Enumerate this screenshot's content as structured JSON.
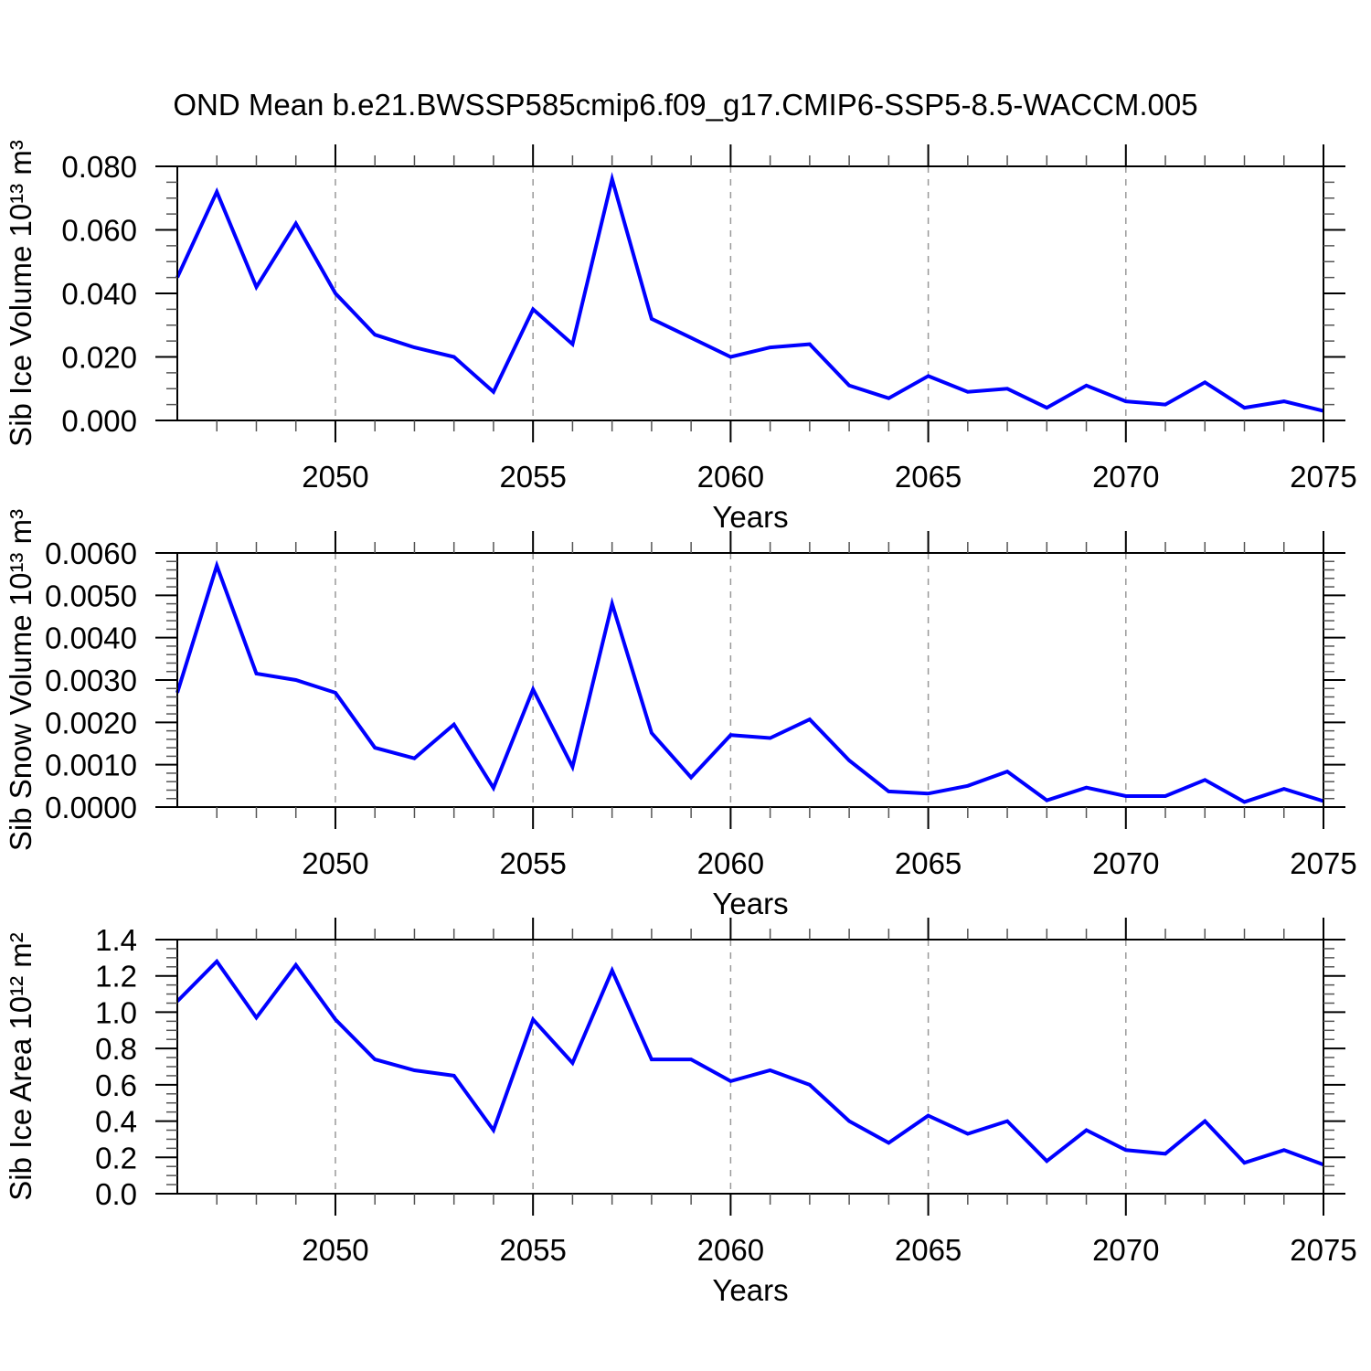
{
  "title": "OND Mean b.e21.BWSSP585cmip6.f09_g17.CMIP6-SSP5-8.5-WACCM.005",
  "colors": {
    "line": "#0000ff",
    "axis": "#000000",
    "minor_tick": "#555555",
    "grid": "#999999",
    "background": "#ffffff",
    "text": "#000000"
  },
  "x_axis": {
    "label": "Years",
    "xlim": [
      2046,
      2075
    ],
    "major_ticks": [
      2050,
      2055,
      2060,
      2065,
      2070,
      2075
    ],
    "tick_labels": [
      "2050",
      "2055",
      "2060",
      "2065",
      "2070",
      "2075"
    ],
    "gridlines": [
      2050,
      2055,
      2060,
      2065,
      2070
    ],
    "minor_step_years": 1
  },
  "chart_data": [
    {
      "type": "line",
      "name": "sib-ice-volume",
      "ylabel": "Sib Ice Volume 10¹³ m³",
      "xlabel": "Years",
      "ylim": [
        0,
        0.08
      ],
      "ytick_major_step": 0.02,
      "ytick_minor_step": 0.005,
      "ytick_decimals": 3,
      "ytick_labels": [
        "0.000",
        "0.020",
        "0.040",
        "0.060",
        "0.080"
      ],
      "grid": "dashed-vertical",
      "legend": "none",
      "x": [
        2046,
        2047,
        2048,
        2049,
        2050,
        2051,
        2052,
        2053,
        2054,
        2055,
        2056,
        2057,
        2058,
        2059,
        2060,
        2061,
        2062,
        2063,
        2064,
        2065,
        2066,
        2067,
        2068,
        2069,
        2070,
        2071,
        2072,
        2073,
        2074,
        2075
      ],
      "values": [
        0.045,
        0.072,
        0.042,
        0.062,
        0.04,
        0.027,
        0.023,
        0.02,
        0.009,
        0.035,
        0.024,
        0.076,
        0.032,
        0.026,
        0.02,
        0.023,
        0.024,
        0.011,
        0.007,
        0.014,
        0.009,
        0.01,
        0.004,
        0.011,
        0.006,
        0.005,
        0.012,
        0.004,
        0.006,
        0.003
      ]
    },
    {
      "type": "line",
      "name": "sib-snow-volume",
      "ylabel": "Sib Snow Volume 10¹³ m³",
      "xlabel": "Years",
      "ylim": [
        0,
        0.006
      ],
      "ytick_major_step": 0.001,
      "ytick_minor_step": 0.0002,
      "ytick_decimals": 4,
      "ytick_labels": [
        "0.0000",
        "0.0010",
        "0.0020",
        "0.0030",
        "0.0040",
        "0.0050",
        "0.0060"
      ],
      "grid": "dashed-vertical",
      "legend": "none",
      "x": [
        2046,
        2047,
        2048,
        2049,
        2050,
        2051,
        2052,
        2053,
        2054,
        2055,
        2056,
        2057,
        2058,
        2059,
        2060,
        2061,
        2062,
        2063,
        2064,
        2065,
        2066,
        2067,
        2068,
        2069,
        2070,
        2071,
        2072,
        2073,
        2074,
        2075
      ],
      "values": [
        0.0027,
        0.0057,
        0.00315,
        0.003,
        0.0027,
        0.0014,
        0.00115,
        0.00195,
        0.00045,
        0.00278,
        0.00095,
        0.0048,
        0.00175,
        0.0007,
        0.0017,
        0.00163,
        0.00207,
        0.0011,
        0.00037,
        0.00032,
        0.0005,
        0.00084,
        0.00016,
        0.00046,
        0.00026,
        0.00026,
        0.00064,
        0.00012,
        0.00043,
        0.00014
      ]
    },
    {
      "type": "line",
      "name": "sib-ice-area",
      "ylabel": "Sib Ice Area 10¹² m²",
      "xlabel": "Years",
      "ylim": [
        0,
        1.4
      ],
      "ytick_major_step": 0.2,
      "ytick_minor_step": 0.05,
      "ytick_decimals": 1,
      "ytick_labels": [
        "0.0",
        "0.2",
        "0.4",
        "0.6",
        "0.8",
        "1.0",
        "1.2",
        "1.4"
      ],
      "grid": "dashed-vertical",
      "legend": "none",
      "x": [
        2046,
        2047,
        2048,
        2049,
        2050,
        2051,
        2052,
        2053,
        2054,
        2055,
        2056,
        2057,
        2058,
        2059,
        2060,
        2061,
        2062,
        2063,
        2064,
        2065,
        2066,
        2067,
        2068,
        2069,
        2070,
        2071,
        2072,
        2073,
        2074,
        2075
      ],
      "values": [
        1.06,
        1.28,
        0.97,
        1.26,
        0.96,
        0.74,
        0.68,
        0.65,
        0.35,
        0.96,
        0.72,
        1.23,
        0.74,
        0.74,
        0.62,
        0.68,
        0.6,
        0.4,
        0.28,
        0.43,
        0.33,
        0.4,
        0.18,
        0.35,
        0.24,
        0.22,
        0.4,
        0.17,
        0.24,
        0.16
      ]
    }
  ]
}
